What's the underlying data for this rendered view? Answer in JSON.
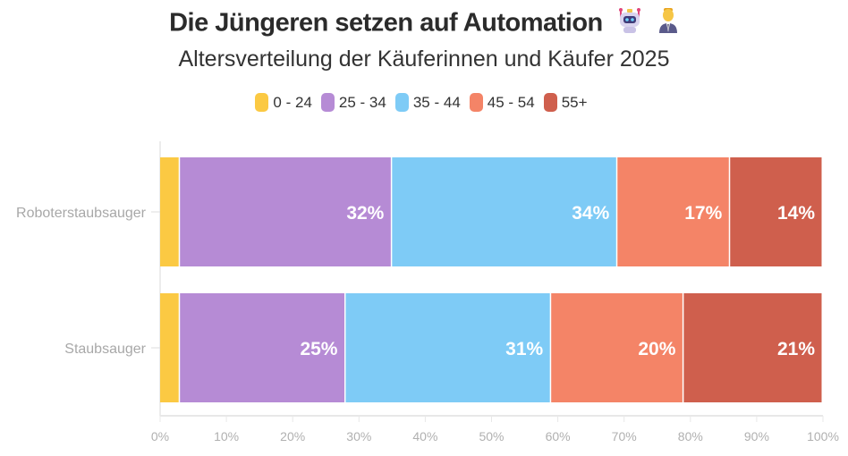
{
  "header": {
    "title": "Die Jüngeren setzen auf Automation",
    "title_icons": [
      "robot-icon",
      "office-worker-icon"
    ],
    "subtitle": "Altersverteilung der Käuferinnen und Käufer 2025"
  },
  "chart_data": {
    "type": "bar",
    "orientation": "horizontal",
    "stacked": true,
    "title": "Die Jüngeren setzen auf Automation",
    "subtitle": "Altersverteilung der Käuferinnen und Käufer 2025",
    "categories": [
      "Roboterstaubsauger",
      "Staubsauger"
    ],
    "series": [
      {
        "name": "0 - 24",
        "color": "#fbc943",
        "values": [
          3,
          3
        ],
        "labels": [
          "",
          ""
        ]
      },
      {
        "name": "25 - 34",
        "color": "#b68bd5",
        "values": [
          32,
          25
        ],
        "labels": [
          "32%",
          "25%"
        ]
      },
      {
        "name": "35 - 44",
        "color": "#7ecbf6",
        "values": [
          34,
          31
        ],
        "labels": [
          "34%",
          "31%"
        ]
      },
      {
        "name": "45 - 54",
        "color": "#f48467",
        "values": [
          17,
          20
        ],
        "labels": [
          "17%",
          "20%"
        ]
      },
      {
        "name": "55+",
        "color": "#cf5f4d",
        "values": [
          14,
          21
        ],
        "labels": [
          "14%",
          "21%"
        ]
      }
    ],
    "xlabel": "",
    "ylabel": "",
    "xlim": [
      0,
      100
    ],
    "x_ticks": [
      "0%",
      "10%",
      "20%",
      "30%",
      "40%",
      "50%",
      "60%",
      "70%",
      "80%",
      "90%",
      "100%"
    ],
    "legend_position": "top-center",
    "grid": false
  }
}
